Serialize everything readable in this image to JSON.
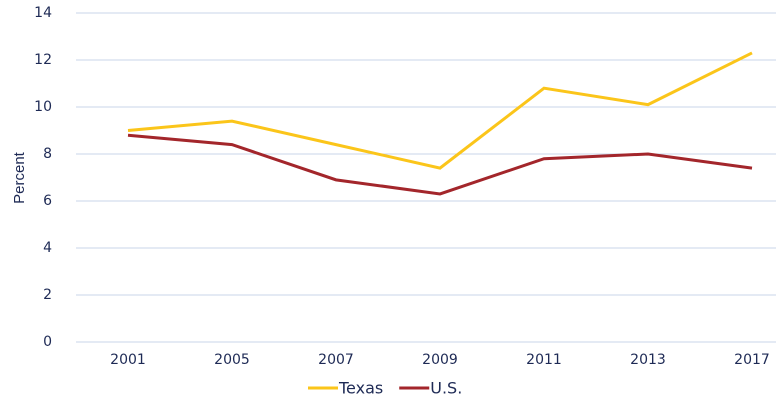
{
  "chart_data": {
    "type": "line",
    "y_label": "Percent",
    "categories": [
      "2001",
      "2005",
      "2007",
      "2009",
      "2011",
      "2013",
      "2017"
    ],
    "series": [
      {
        "name": "Texas",
        "color": "#fbc51a",
        "values": [
          9.0,
          9.4,
          8.4,
          7.4,
          10.8,
          10.1,
          12.3
        ]
      },
      {
        "name": "U.S.",
        "color": "#a3262b",
        "values": [
          8.8,
          8.4,
          6.9,
          6.3,
          7.8,
          8.0,
          7.4
        ]
      }
    ],
    "ylim": [
      0,
      14
    ],
    "yticks": [
      0,
      2,
      4,
      6,
      8,
      10,
      12,
      14
    ],
    "grid": true,
    "legend": "bottom"
  }
}
